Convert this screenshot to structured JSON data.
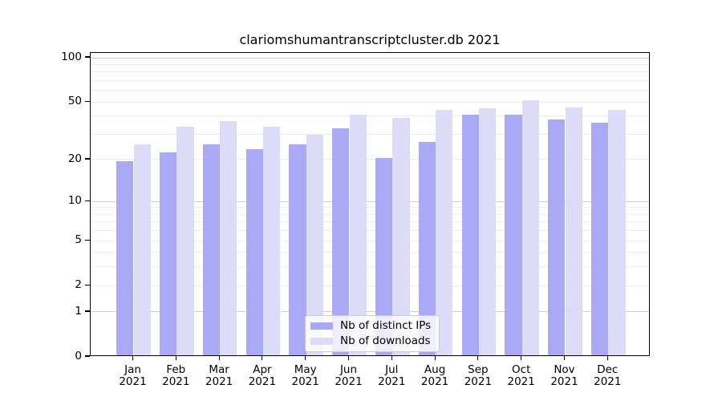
{
  "page": {
    "background": "#ffffff"
  },
  "colors": {
    "bar_distinct_ips": "#a9a9f5",
    "bar_downloads": "#dcdcf9",
    "grid_major": "#d0d0d0",
    "grid_minor": "#ebebeb",
    "axis": "#000000",
    "legend_border": "#cccccc",
    "legend_background": "rgba(255,255,255,0.8)",
    "text": "#000000"
  },
  "chart_data": {
    "type": "bar",
    "title": "clariomshumantranscriptcluster.db 2021",
    "x_categories": [
      "Jan",
      "Feb",
      "Mar",
      "Apr",
      "May",
      "Jun",
      "Jul",
      "Aug",
      "Sep",
      "Oct",
      "Nov",
      "Dec"
    ],
    "x_year_line": "2021",
    "series": [
      {
        "name": "Nb of distinct IPs",
        "color_key": "bar_distinct_ips",
        "values": [
          19,
          22,
          25,
          23,
          25,
          32,
          20,
          26,
          40,
          40,
          37,
          35
        ]
      },
      {
        "name": "Nb of downloads",
        "color_key": "bar_downloads",
        "values": [
          25,
          33,
          36,
          33,
          29,
          40,
          38,
          43,
          44,
          50,
          45,
          43
        ]
      }
    ],
    "y_axis": {
      "scale": "log10(value+1)",
      "tick_values": [
        0,
        1,
        2,
        5,
        10,
        20,
        50,
        100
      ],
      "tick_labels": [
        "0",
        "1",
        "2",
        "5",
        "10",
        "20",
        "50",
        "100"
      ],
      "range_min": 0,
      "range_max": 100
    },
    "gridlines": {
      "major": [
        1,
        10,
        100
      ],
      "minor": [
        2,
        3,
        4,
        5,
        6,
        7,
        8,
        9,
        20,
        30,
        40,
        50,
        60,
        70,
        80,
        90
      ]
    },
    "legend": {
      "position": "inside-bottom-center-left",
      "labels": [
        "Nb of distinct IPs",
        "Nb of downloads"
      ]
    },
    "grid_on": true
  }
}
